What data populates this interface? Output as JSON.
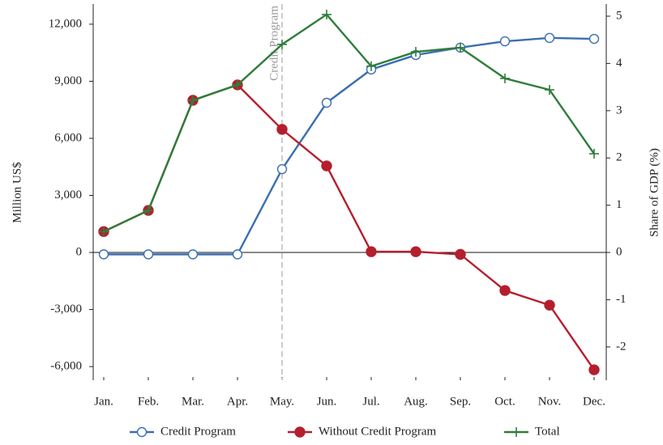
{
  "chart_data": {
    "type": "line",
    "ylabel": "Million US$",
    "y2label": "Share of GDP (%)",
    "categories": [
      "Jan.",
      "Feb.",
      "Mar.",
      "Apr.",
      "May.",
      "Jun.",
      "Jul.",
      "Aug.",
      "Sep.",
      "Oct.",
      "Nov.",
      "Dec."
    ],
    "series": [
      {
        "name": "Credit Program",
        "color": "#3b6fb0",
        "marker": "open-circle",
        "values": [
          -100,
          -100,
          -100,
          -100,
          4380,
          7870,
          9620,
          10380,
          10770,
          11100,
          11280,
          11230
        ]
      },
      {
        "name": "Without Credit Program",
        "color": "#b41f2e",
        "marker": "filled-circle",
        "values": [
          1100,
          2210,
          8000,
          8810,
          6470,
          4550,
          40,
          40,
          -100,
          -2000,
          -2770,
          -6170
        ]
      },
      {
        "name": "Total",
        "color": "#2f7d3b",
        "marker": "plus",
        "values": [
          1100,
          2210,
          8000,
          8810,
          10940,
          12510,
          9790,
          10550,
          10770,
          9150,
          8550,
          5190
        ]
      }
    ],
    "ylim": [
      -6720,
      13060
    ],
    "yticks": [
      {
        "value": -6000,
        "label": "-6,000"
      },
      {
        "value": -3000,
        "label": "-3,000"
      },
      0,
      {
        "value": 3000,
        "label": "3,000"
      },
      {
        "value": 6000,
        "label": "6,000"
      },
      {
        "value": 9000,
        "label": "9,000"
      },
      {
        "value": 12000,
        "label": "12,000"
      }
    ],
    "y2lim": [
      -2.705,
      5.257
    ],
    "y2ticks": [
      -2,
      -1,
      0,
      1,
      2,
      3,
      4,
      5
    ],
    "vline": {
      "x": "May.",
      "label": "Credit Program"
    },
    "zero_line": true,
    "legend": "bottom"
  }
}
